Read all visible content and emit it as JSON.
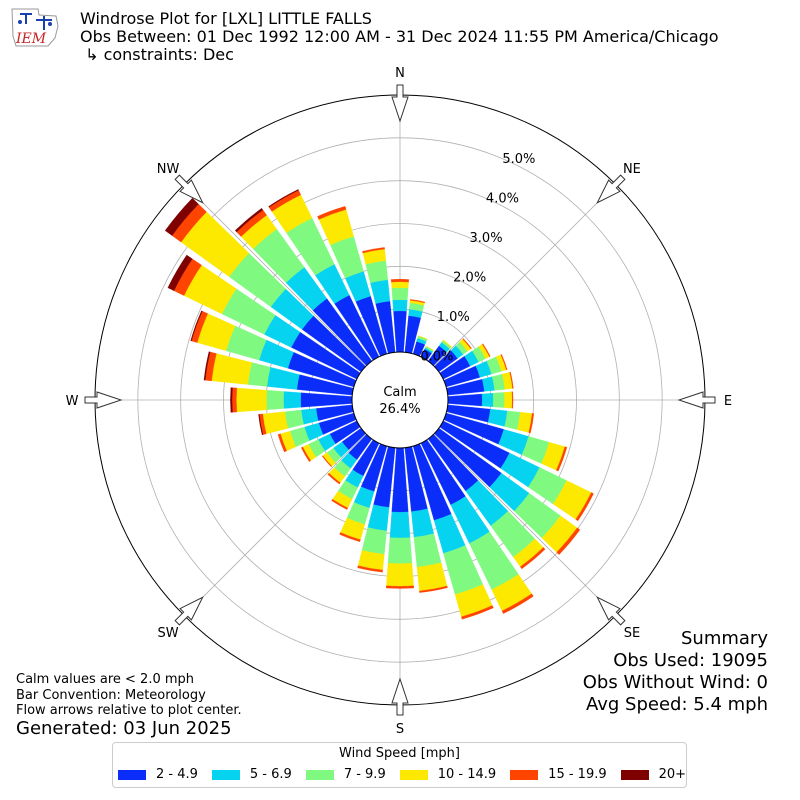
{
  "header": {
    "logo_text": "IEM",
    "title_line1": "Windrose Plot for [LXL] LITTLE FALLS",
    "title_line2": "Obs Between: 01 Dec 1992 12:00 AM - 31 Dec 2024 11:55 PM America/Chicago",
    "title_line3": " ↳ constraints: Dec"
  },
  "summary": {
    "heading": "Summary",
    "obs_used": "Obs Used: 19095",
    "obs_without_wind": "Obs Without Wind: 0",
    "avg_speed": "Avg Speed: 5.4 mph"
  },
  "notes": {
    "calm_note": "Calm values are < 2.0 mph",
    "bar_convention": "Bar Convention: Meteorology",
    "flow_note": "Flow arrows relative to plot center."
  },
  "generated": "Generated: 03 Jun 2025",
  "chart_data": {
    "type": "windrose",
    "calm_label": "Calm",
    "calm_value": "26.4%",
    "direction_labels": [
      "N",
      "NE",
      "E",
      "SE",
      "S",
      "SW",
      "W",
      "NW"
    ],
    "radial_ticks": [
      "0.0%",
      "1.0%",
      "2.0%",
      "3.0%",
      "4.0%",
      "5.0%"
    ],
    "radial_range": [
      0,
      6
    ],
    "grid": true,
    "legend": {
      "title": "Wind Speed [mph]",
      "placement": "bottom",
      "bins": [
        "2 - 4.9",
        "5 - 6.9",
        "7 - 9.9",
        "10 - 14.9",
        "15 - 19.9",
        "20+"
      ],
      "colors": [
        "#0a2dfa",
        "#05d3f0",
        "#80f980",
        "#fde800",
        "#ff4400",
        "#7f0000"
      ]
    },
    "directions_deg": [
      0,
      10,
      20,
      30,
      40,
      50,
      60,
      70,
      80,
      90,
      100,
      110,
      120,
      130,
      140,
      150,
      160,
      170,
      180,
      190,
      200,
      210,
      220,
      230,
      240,
      250,
      260,
      270,
      280,
      290,
      300,
      310,
      320,
      330,
      340,
      350
    ],
    "cumulative_percent": [
      [
        0.96,
        1.22,
        1.5,
        1.64,
        1.7,
        1.7
      ],
      [
        0.86,
        1.01,
        1.16,
        1.22,
        1.24,
        1.24
      ],
      [
        0.3,
        0.38,
        0.43,
        0.44,
        0.44,
        0.44
      ],
      [
        0.2,
        0.24,
        0.27,
        0.28,
        0.28,
        0.28
      ],
      [
        0.44,
        0.54,
        0.59,
        0.61,
        0.61,
        0.61
      ],
      [
        0.54,
        0.7,
        0.82,
        0.92,
        0.94,
        0.94
      ],
      [
        0.7,
        0.92,
        1.1,
        1.2,
        1.22,
        1.22
      ],
      [
        0.82,
        1.1,
        1.34,
        1.46,
        1.48,
        1.48
      ],
      [
        0.86,
        1.1,
        1.34,
        1.52,
        1.54,
        1.54
      ],
      [
        0.8,
        1.06,
        1.32,
        1.5,
        1.52,
        1.52
      ],
      [
        1.0,
        1.4,
        1.7,
        1.98,
        2.02,
        2.02
      ],
      [
        1.4,
        2.0,
        2.5,
        2.88,
        2.93,
        2.93
      ],
      [
        1.72,
        2.5,
        3.2,
        3.84,
        3.9,
        3.9
      ],
      [
        1.8,
        2.6,
        3.5,
        3.98,
        4.06,
        4.06
      ],
      [
        1.5,
        2.5,
        3.4,
        3.68,
        3.74,
        3.74
      ],
      [
        1.6,
        2.6,
        3.8,
        4.35,
        4.42,
        4.42
      ],
      [
        1.8,
        2.6,
        3.6,
        4.14,
        4.2,
        4.2
      ],
      [
        1.5,
        2.1,
        2.8,
        3.36,
        3.4,
        3.4
      ],
      [
        1.5,
        2.1,
        2.7,
        3.23,
        3.28,
        3.28
      ],
      [
        1.4,
        1.95,
        2.5,
        2.87,
        2.92,
        2.92
      ],
      [
        1.1,
        1.5,
        1.9,
        2.27,
        2.32,
        2.32
      ],
      [
        0.85,
        1.15,
        1.45,
        1.68,
        1.72,
        1.72
      ],
      [
        0.6,
        0.85,
        1.08,
        1.26,
        1.3,
        1.3
      ],
      [
        0.55,
        0.8,
        0.98,
        1.1,
        1.12,
        1.12
      ],
      [
        0.7,
        1.0,
        1.25,
        1.4,
        1.44,
        1.44
      ],
      [
        0.85,
        1.2,
        1.55,
        1.78,
        1.84,
        1.84
      ],
      [
        0.85,
        1.2,
        1.58,
        2.1,
        2.18,
        2.2
      ],
      [
        1.2,
        1.6,
        2.0,
        2.7,
        2.8,
        2.84
      ],
      [
        1.3,
        2.0,
        2.45,
        3.3,
        3.45,
        3.48
      ],
      [
        1.6,
        2.3,
        3.1,
        3.8,
        3.94,
        3.96
      ],
      [
        1.7,
        2.4,
        3.5,
        4.48,
        4.74,
        4.9
      ],
      [
        1.7,
        2.6,
        3.8,
        5.18,
        5.44,
        5.64
      ],
      [
        1.8,
        2.7,
        3.8,
        4.2,
        4.35,
        4.4
      ],
      [
        1.6,
        2.4,
        3.6,
        4.2,
        4.32,
        4.34
      ],
      [
        1.4,
        2.0,
        2.85,
        3.5,
        3.58,
        3.58
      ],
      [
        1.2,
        1.7,
        2.15,
        2.42,
        2.46,
        2.46
      ]
    ]
  }
}
